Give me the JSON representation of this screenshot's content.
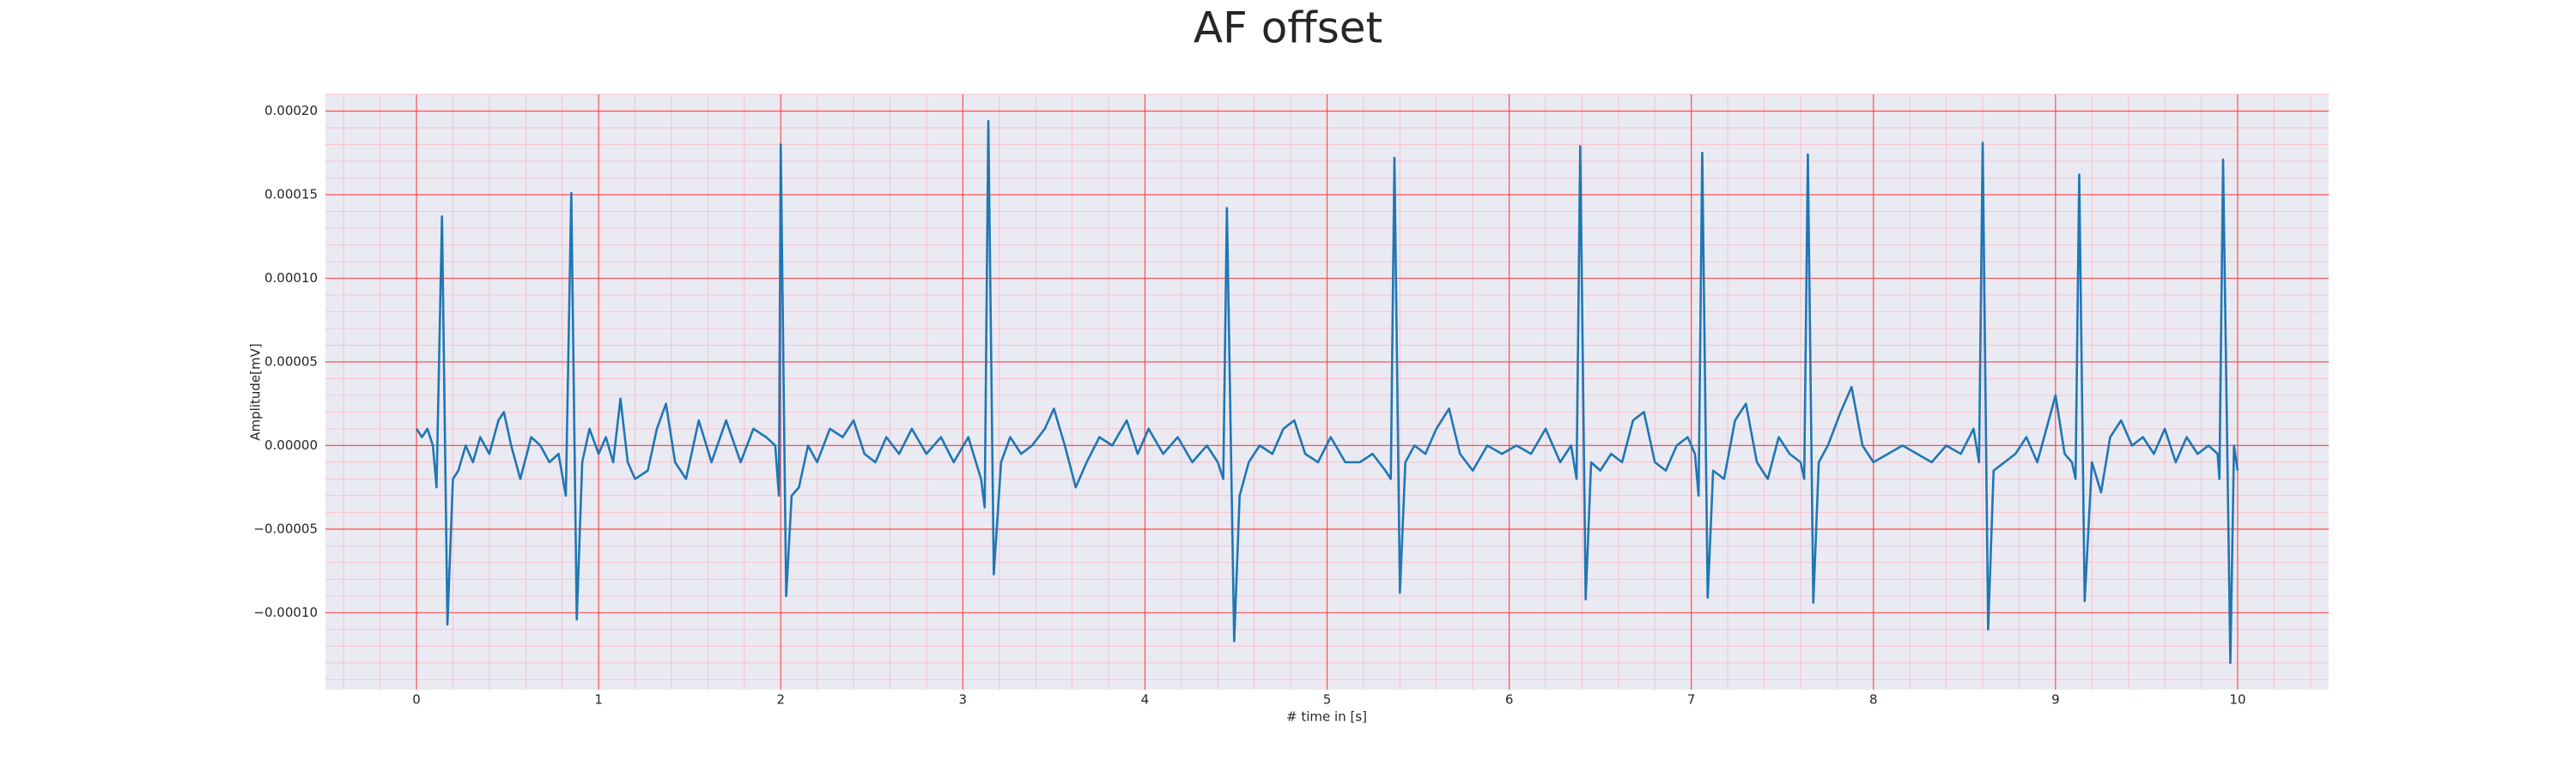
{
  "chart_data": {
    "type": "line",
    "title": "AF offset",
    "xlabel": "# time in [s]",
    "ylabel": "Amplitude[mV]",
    "color": "#1f77b4",
    "grid": true,
    "minor_grid": true,
    "xlim": [
      -0.5,
      10.5
    ],
    "ylim": [
      -0.000146,
      0.00021
    ],
    "xticks": [
      0,
      1,
      2,
      3,
      4,
      5,
      6,
      7,
      8,
      9,
      10
    ],
    "yticks": [
      {
        "value": -0.0001,
        "label": "−0.00010"
      },
      {
        "value": -5e-05,
        "label": "−0.00005"
      },
      {
        "value": 0,
        "label": "0.00000"
      },
      {
        "value": 5e-05,
        "label": "0.00005"
      },
      {
        "value": 0.0001,
        "label": "0.00010"
      },
      {
        "value": 0.00015,
        "label": "0.00015"
      },
      {
        "value": 0.0002,
        "label": "0.00020"
      }
    ],
    "x": [
      0.0,
      0.03,
      0.06,
      0.09,
      0.11,
      0.14,
      0.17,
      0.2,
      0.23,
      0.27,
      0.31,
      0.35,
      0.4,
      0.45,
      0.48,
      0.52,
      0.57,
      0.63,
      0.68,
      0.73,
      0.78,
      0.82,
      0.85,
      0.88,
      0.91,
      0.95,
      1.0,
      1.04,
      1.08,
      1.12,
      1.16,
      1.2,
      1.27,
      1.32,
      1.37,
      1.42,
      1.48,
      1.55,
      1.62,
      1.7,
      1.78,
      1.85,
      1.92,
      1.97,
      1.99,
      2.0,
      2.03,
      2.06,
      2.1,
      2.15,
      2.2,
      2.27,
      2.34,
      2.4,
      2.46,
      2.52,
      2.58,
      2.65,
      2.72,
      2.8,
      2.88,
      2.95,
      3.03,
      3.1,
      3.12,
      3.14,
      3.17,
      3.21,
      3.26,
      3.32,
      3.38,
      3.45,
      3.5,
      3.56,
      3.62,
      3.68,
      3.75,
      3.82,
      3.9,
      3.96,
      4.02,
      4.1,
      4.18,
      4.26,
      4.34,
      4.4,
      4.43,
      4.45,
      4.49,
      4.52,
      4.57,
      4.63,
      4.7,
      4.76,
      4.82,
      4.88,
      4.95,
      5.02,
      5.1,
      5.18,
      5.25,
      5.32,
      5.35,
      5.37,
      5.4,
      5.43,
      5.48,
      5.54,
      5.6,
      5.67,
      5.73,
      5.8,
      5.88,
      5.96,
      6.04,
      6.12,
      6.2,
      6.28,
      6.34,
      6.37,
      6.39,
      6.42,
      6.45,
      6.5,
      6.56,
      6.62,
      6.68,
      6.74,
      6.8,
      6.86,
      6.92,
      6.98,
      7.02,
      7.04,
      7.06,
      7.09,
      7.12,
      7.18,
      7.24,
      7.3,
      7.36,
      7.42,
      7.48,
      7.54,
      7.6,
      7.62,
      7.64,
      7.67,
      7.7,
      7.75,
      7.82,
      7.88,
      7.94,
      8.0,
      8.08,
      8.16,
      8.24,
      8.32,
      8.4,
      8.48,
      8.55,
      8.58,
      8.6,
      8.63,
      8.66,
      8.72,
      8.78,
      8.84,
      8.9,
      8.95,
      9.0,
      9.05,
      9.09,
      9.11,
      9.13,
      9.16,
      9.2,
      9.25,
      9.3,
      9.36,
      9.42,
      9.48,
      9.54,
      9.6,
      9.66,
      9.72,
      9.78,
      9.84,
      9.89,
      9.9,
      9.92,
      9.96,
      9.98,
      10.0
    ],
    "values": [
      1e-05,
      5e-06,
      1e-05,
      0,
      -2.5e-05,
      0.000137,
      -0.000107,
      -2e-05,
      -1.5e-05,
      0,
      -1e-05,
      5e-06,
      -5e-06,
      1.5e-05,
      2e-05,
      0,
      -2e-05,
      5e-06,
      0,
      -1e-05,
      -5e-06,
      -3e-05,
      0.000151,
      -0.000104,
      -1e-05,
      1e-05,
      -5e-06,
      5e-06,
      -1e-05,
      2.8e-05,
      -1e-05,
      -2e-05,
      -1.5e-05,
      1e-05,
      2.5e-05,
      -1e-05,
      -2e-05,
      1.5e-05,
      -1e-05,
      1.5e-05,
      -1e-05,
      1e-05,
      5e-06,
      0,
      -3e-05,
      0.00018,
      -9e-05,
      -3e-05,
      -2.5e-05,
      0,
      -1e-05,
      1e-05,
      5e-06,
      1.5e-05,
      -5e-06,
      -1e-05,
      5e-06,
      -5e-06,
      1e-05,
      -5e-06,
      5e-06,
      -1e-05,
      5e-06,
      -2e-05,
      -3.7e-05,
      0.000194,
      -7.7e-05,
      -1e-05,
      5e-06,
      -5e-06,
      0,
      1e-05,
      2.2e-05,
      0,
      -2.5e-05,
      -1e-05,
      5e-06,
      0,
      1.5e-05,
      -5e-06,
      1e-05,
      -5e-06,
      5e-06,
      -1e-05,
      0,
      -1e-05,
      -2e-05,
      0.000142,
      -0.000117,
      -3e-05,
      -1e-05,
      0,
      -5e-06,
      1e-05,
      1.5e-05,
      -5e-06,
      -1e-05,
      5e-06,
      -1e-05,
      -1e-05,
      -5e-06,
      -1.5e-05,
      -2e-05,
      0.000172,
      -8.8e-05,
      -1e-05,
      0,
      -5e-06,
      1e-05,
      2.2e-05,
      -5e-06,
      -1.5e-05,
      0,
      -5e-06,
      0,
      -5e-06,
      1e-05,
      -1e-05,
      0,
      -2e-05,
      0.000179,
      -9.2e-05,
      -1e-05,
      -1.5e-05,
      -5e-06,
      -1e-05,
      1.5e-05,
      2e-05,
      -1e-05,
      -1.5e-05,
      0,
      5e-06,
      -5e-06,
      -3e-05,
      0.000175,
      -9.1e-05,
      -1.5e-05,
      -2e-05,
      1.5e-05,
      2.5e-05,
      -1e-05,
      -2e-05,
      5e-06,
      -5e-06,
      -1e-05,
      -2e-05,
      0.000174,
      -9.4e-05,
      -1e-05,
      0,
      2e-05,
      3.5e-05,
      0,
      -1e-05,
      -5e-06,
      0,
      -5e-06,
      -1e-05,
      0,
      -5e-06,
      1e-05,
      -1e-05,
      0.000181,
      -0.00011,
      -1.5e-05,
      -1e-05,
      -5e-06,
      5e-06,
      -1e-05,
      1e-05,
      3e-05,
      -5e-06,
      -1e-05,
      -2e-05,
      0.000162,
      -9.3e-05,
      -1e-05,
      -2.8e-05,
      5e-06,
      1.5e-05,
      0,
      5e-06,
      -5e-06,
      1e-05,
      -1e-05,
      5e-06,
      -5e-06,
      0,
      -5e-06,
      -2e-05,
      0.000171,
      -0.00013,
      0,
      -1.5e-05
    ]
  }
}
